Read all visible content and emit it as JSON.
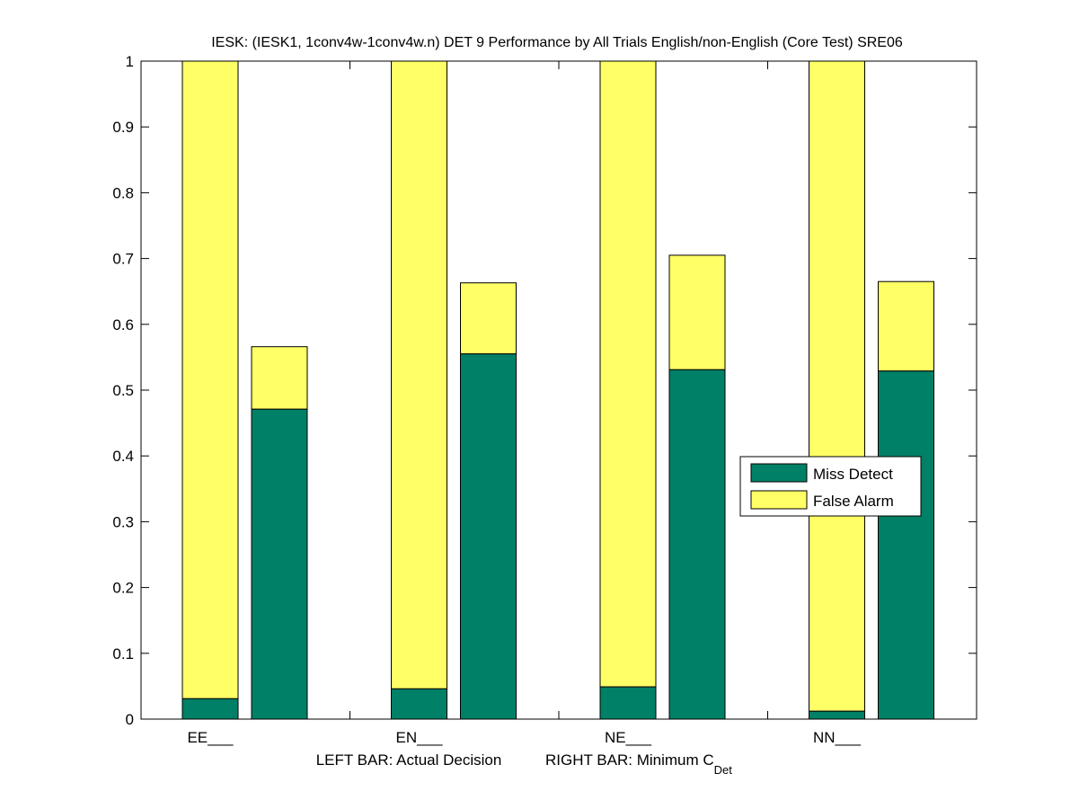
{
  "chart_data": {
    "type": "bar",
    "stacked": true,
    "title": "IESK: (IESK1, 1conv4w-1conv4w.n) DET 9 Performance by All Trials English/non-English (Core Test) SRE06",
    "xlabel_left": "LEFT BAR: Actual Decision",
    "xlabel_right": "RIGHT BAR: Minimum C",
    "xlabel_right_sub": "Det",
    "categories": [
      "EE___",
      "EN___",
      "NE___",
      "NN___"
    ],
    "ylim": [
      0,
      1
    ],
    "yticks": [
      "0",
      "0.1",
      "0.2",
      "0.3",
      "0.4",
      "0.5",
      "0.6",
      "0.7",
      "0.8",
      "0.9",
      "1"
    ],
    "bars": {
      "left_actual_decision": {
        "miss_detect": [
          0.031,
          0.046,
          0.049,
          0.012
        ],
        "total": [
          1.0,
          1.0,
          1.0,
          1.0
        ]
      },
      "right_minimum_cdet": {
        "miss_detect": [
          0.471,
          0.555,
          0.531,
          0.529
        ],
        "total": [
          0.566,
          0.663,
          0.705,
          0.665
        ]
      }
    },
    "legend": {
      "position": "center-right",
      "entries": [
        {
          "label": "Miss Detect",
          "color": "#008066"
        },
        {
          "label": "False Alarm",
          "color": "#ffff66"
        }
      ]
    }
  }
}
